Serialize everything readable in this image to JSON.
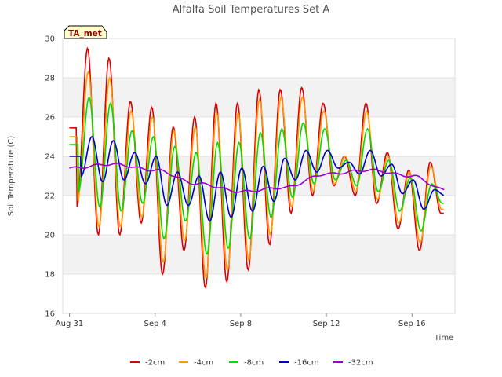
{
  "chart_data": {
    "type": "line",
    "title": "Alfalfa Soil Temperatures Set A",
    "badge": "TA_met",
    "xlabel": "Time",
    "ylabel": "Soil Temperature (C)",
    "ylim": [
      16,
      30
    ],
    "yticks": [
      16,
      18,
      20,
      22,
      24,
      26,
      28,
      30
    ],
    "xlim": [
      0,
      18
    ],
    "xticks": [
      {
        "value": 0,
        "label": "Aug 31"
      },
      {
        "value": 4,
        "label": "Sep 4"
      },
      {
        "value": 8,
        "label": "Sep 8"
      },
      {
        "value": 12,
        "label": "Sep 12"
      },
      {
        "value": 16,
        "label": "Sep 16"
      }
    ],
    "x_units": "days since Aug 31",
    "background_bands": "alternating light grey horizontal bands",
    "legend_position": "bottom",
    "series": [
      {
        "name": "-2cm",
        "color": "#dd0000",
        "daily_peaks": [
          29.5,
          29.0,
          26.8,
          26.5,
          25.5,
          26.0,
          26.7,
          26.7,
          27.4,
          27.4,
          27.5,
          26.7,
          24.0,
          26.7,
          24.2,
          23.3,
          23.7
        ],
        "daily_troughs": [
          21.4,
          20.0,
          20.0,
          20.6,
          18.0,
          19.2,
          17.3,
          17.6,
          18.2,
          19.5,
          21.1,
          22.0,
          22.5,
          22.0,
          21.6,
          20.3,
          19.2,
          21.1
        ]
      },
      {
        "name": "-4cm",
        "color": "#ff9900",
        "daily_peaks": [
          28.3,
          28.0,
          26.3,
          26.0,
          25.3,
          25.5,
          26.2,
          26.2,
          26.9,
          27.0,
          27.0,
          26.3,
          24.0,
          26.3,
          24.0,
          23.2,
          23.5
        ],
        "daily_troughs": [
          21.7,
          20.4,
          20.4,
          20.9,
          18.6,
          19.7,
          17.8,
          18.2,
          18.7,
          20.0,
          21.4,
          22.2,
          22.6,
          22.2,
          21.8,
          20.6,
          19.6,
          21.3
        ]
      },
      {
        "name": "-8cm",
        "color": "#00dd00",
        "daily_peaks": [
          27.0,
          26.7,
          25.3,
          25.0,
          24.5,
          24.2,
          24.7,
          24.7,
          25.2,
          25.4,
          25.7,
          25.4,
          23.8,
          25.4,
          23.8,
          22.9,
          22.6
        ],
        "daily_troughs": [
          22.2,
          21.4,
          21.2,
          21.6,
          19.8,
          20.7,
          19.0,
          19.3,
          19.8,
          20.9,
          21.9,
          22.6,
          22.8,
          22.5,
          22.2,
          21.2,
          20.2,
          21.6
        ]
      },
      {
        "name": "-16cm",
        "color": "#0000cc",
        "daily_peaks": [
          25.0,
          24.8,
          24.2,
          24.0,
          23.2,
          23.0,
          23.2,
          23.4,
          23.5,
          23.9,
          24.3,
          24.3,
          23.7,
          24.3,
          23.6,
          22.8,
          22.3
        ],
        "daily_troughs": [
          23.0,
          22.7,
          22.8,
          22.6,
          21.5,
          21.5,
          20.7,
          20.9,
          21.2,
          21.7,
          22.8,
          23.2,
          23.4,
          23.1,
          23.0,
          22.1,
          21.3,
          22.0
        ]
      },
      {
        "name": "-32cm",
        "color": "#9900cc",
        "x": [
          0,
          2,
          4,
          6,
          8,
          10,
          12,
          14,
          16,
          17.5
        ],
        "values": [
          23.4,
          23.6,
          23.3,
          22.6,
          22.2,
          22.4,
          23.1,
          23.3,
          23.0,
          22.3
        ]
      }
    ]
  }
}
